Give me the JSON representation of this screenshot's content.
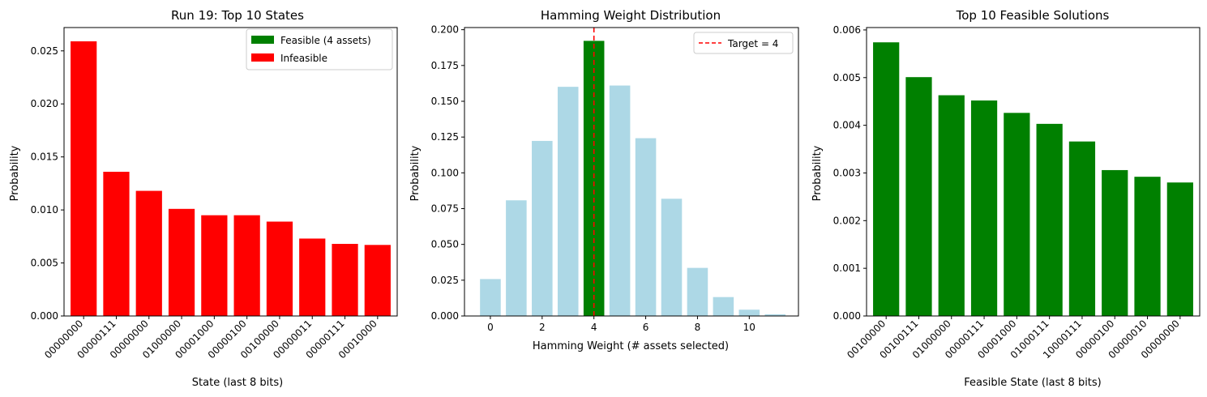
{
  "chart_data": [
    {
      "type": "bar",
      "title": "Run 19: Top 10 States",
      "xlabel": "State (last 8 bits)",
      "ylabel": "Probability",
      "ylim": [
        0,
        0.0272
      ],
      "yticks": [
        "0.000",
        "0.005",
        "0.010",
        "0.015",
        "0.020",
        "0.025"
      ],
      "categories": [
        "00000000",
        "00000111",
        "00000000",
        "01000000",
        "00001000",
        "00000100",
        "00100000",
        "00000011",
        "00000111",
        "00010000"
      ],
      "values": [
        0.0259,
        0.0136,
        0.0118,
        0.0101,
        0.0095,
        0.0095,
        0.0089,
        0.0073,
        0.0068,
        0.0067
      ],
      "bar_colors": [
        "#ff0000",
        "#ff0000",
        "#ff0000",
        "#ff0000",
        "#ff0000",
        "#ff0000",
        "#ff0000",
        "#ff0000",
        "#ff0000",
        "#ff0000"
      ],
      "legend": [
        {
          "label": "Feasible (4 assets)",
          "color": "#008000"
        },
        {
          "label": "Infeasible",
          "color": "#ff0000"
        }
      ],
      "legend_position": "top-right"
    },
    {
      "type": "bar",
      "title": "Hamming Weight Distribution",
      "xlabel": "Hamming Weight (# assets selected)",
      "ylabel": "Probability",
      "ylim": [
        0,
        0.2015
      ],
      "xlim": [
        -1.0,
        11.9
      ],
      "yticks": [
        "0.000",
        "0.025",
        "0.050",
        "0.075",
        "0.100",
        "0.125",
        "0.150",
        "0.175",
        "0.200"
      ],
      "xticks": [
        "0",
        "2",
        "4",
        "6",
        "8",
        "10"
      ],
      "x": [
        0,
        1,
        2,
        3,
        4,
        5,
        6,
        7,
        8,
        9,
        10,
        11
      ],
      "values": [
        0.0258,
        0.0808,
        0.1223,
        0.1601,
        0.1922,
        0.161,
        0.1242,
        0.0819,
        0.0336,
        0.0132,
        0.0044,
        0.0012
      ],
      "bar_colors": [
        "#add8e6",
        "#add8e6",
        "#add8e6",
        "#add8e6",
        "#008000",
        "#add8e6",
        "#add8e6",
        "#add8e6",
        "#add8e6",
        "#add8e6",
        "#add8e6",
        "#add8e6"
      ],
      "reference_line": {
        "x": 4,
        "color": "#ff0000",
        "style": "dashed"
      },
      "legend": [
        {
          "label": "Target = 4",
          "color": "#ff0000",
          "style": "dashed-line"
        }
      ],
      "legend_position": "top-right"
    },
    {
      "type": "bar",
      "title": "Top 10 Feasible Solutions",
      "xlabel": "Feasible State (last 8 bits)",
      "ylabel": "Probability",
      "ylim": [
        0,
        0.00605
      ],
      "yticks": [
        "0.000",
        "0.001",
        "0.002",
        "0.003",
        "0.004",
        "0.005",
        "0.006"
      ],
      "categories": [
        "00100000",
        "00100111",
        "01000000",
        "00000111",
        "00001000",
        "01000111",
        "10000111",
        "00000100",
        "00000010",
        "00000000"
      ],
      "values": [
        0.00574,
        0.00501,
        0.00463,
        0.00452,
        0.00426,
        0.00403,
        0.00366,
        0.00306,
        0.00292,
        0.0028
      ],
      "bar_colors": [
        "#008000",
        "#008000",
        "#008000",
        "#008000",
        "#008000",
        "#008000",
        "#008000",
        "#008000",
        "#008000",
        "#008000"
      ]
    }
  ]
}
